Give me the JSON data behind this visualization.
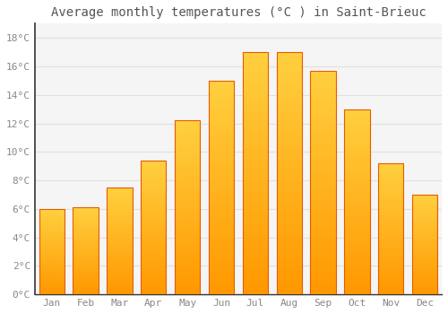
{
  "title": "Average monthly temperatures (°C ) in Saint-Brieuc",
  "months": [
    "Jan",
    "Feb",
    "Mar",
    "Apr",
    "May",
    "Jun",
    "Jul",
    "Aug",
    "Sep",
    "Oct",
    "Nov",
    "Dec"
  ],
  "values": [
    6.0,
    6.1,
    7.5,
    9.4,
    12.2,
    15.0,
    17.0,
    17.0,
    15.7,
    13.0,
    9.2,
    7.0
  ],
  "bar_color_top": "#FFC107",
  "bar_color_bottom": "#FF9800",
  "bar_edge_color": "#E65C00",
  "background_color": "#FFFFFF",
  "plot_bg_color": "#F5F5F5",
  "grid_color": "#E0E0E0",
  "ylim": [
    0,
    19
  ],
  "yticks": [
    0,
    2,
    4,
    6,
    8,
    10,
    12,
    14,
    16,
    18
  ],
  "title_fontsize": 10,
  "tick_fontsize": 8,
  "tick_color": "#888888",
  "title_color": "#555555",
  "spine_color": "#333333",
  "bar_width": 0.75
}
